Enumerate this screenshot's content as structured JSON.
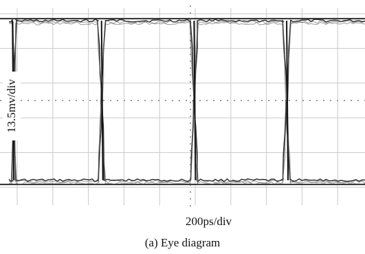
{
  "chart_data": {
    "type": "line",
    "title": "",
    "xlabel": "200ps/div",
    "ylabel": "13.5mv/div",
    "grid": true,
    "x_divisions": 10,
    "y_divisions": 5,
    "ylim": [
      -2.5,
      2.5
    ],
    "levels": {
      "high": 2.3,
      "low": -2.3
    },
    "transition_times_div": [
      0.1,
      2.6,
      5.2,
      7.8,
      10.4
    ],
    "series": [
      {
        "x": [
          0.0,
          0.1,
          0.2,
          2.5,
          2.6,
          2.7,
          5.1,
          5.2,
          5.3,
          7.7,
          7.8,
          7.9,
          10.0
        ],
        "y": [
          2.3,
          2.3,
          -2.3,
          -2.3,
          0.0,
          2.3,
          2.3,
          0.0,
          -2.3,
          -2.3,
          0.0,
          2.3,
          2.3
        ]
      },
      {
        "x": [
          0.0,
          0.1,
          0.2,
          2.5,
          2.6,
          2.7,
          5.1,
          5.2,
          5.3,
          7.7,
          7.8,
          7.9,
          10.0
        ],
        "y": [
          -2.3,
          -2.3,
          2.3,
          2.3,
          0.0,
          -2.3,
          -2.3,
          0.0,
          2.3,
          2.3,
          0.0,
          -2.3,
          -2.3
        ]
      }
    ],
    "caption": "(a) Eye diagram"
  }
}
